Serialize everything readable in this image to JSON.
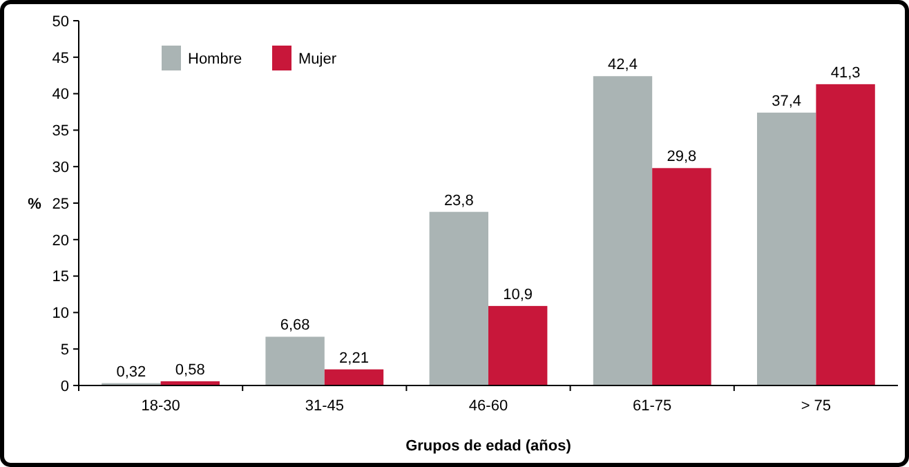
{
  "chart_data": {
    "type": "bar",
    "xlabel": "Grupos de edad (años)",
    "ylabel": "%",
    "categories": [
      "18-30",
      "31-45",
      "46-60",
      "61-75",
      "> 75"
    ],
    "series": [
      {
        "name": "Hombre",
        "color": "#aab4b4",
        "values": [
          0.32,
          6.68,
          23.8,
          42.4,
          37.4
        ],
        "value_labels": [
          "0,32",
          "6,68",
          "23,8",
          "42,4",
          "37,4"
        ]
      },
      {
        "name": "Mujer",
        "color": "#c8173a",
        "values": [
          0.58,
          2.21,
          10.9,
          29.8,
          41.3
        ],
        "value_labels": [
          "0,58",
          "2,21",
          "10,9",
          "29,8",
          "41,3"
        ]
      }
    ],
    "ylim": [
      0,
      50
    ],
    "yticks": [
      0,
      5,
      10,
      15,
      20,
      25,
      30,
      35,
      40,
      45,
      50
    ],
    "grid": false,
    "legend": "top left"
  }
}
